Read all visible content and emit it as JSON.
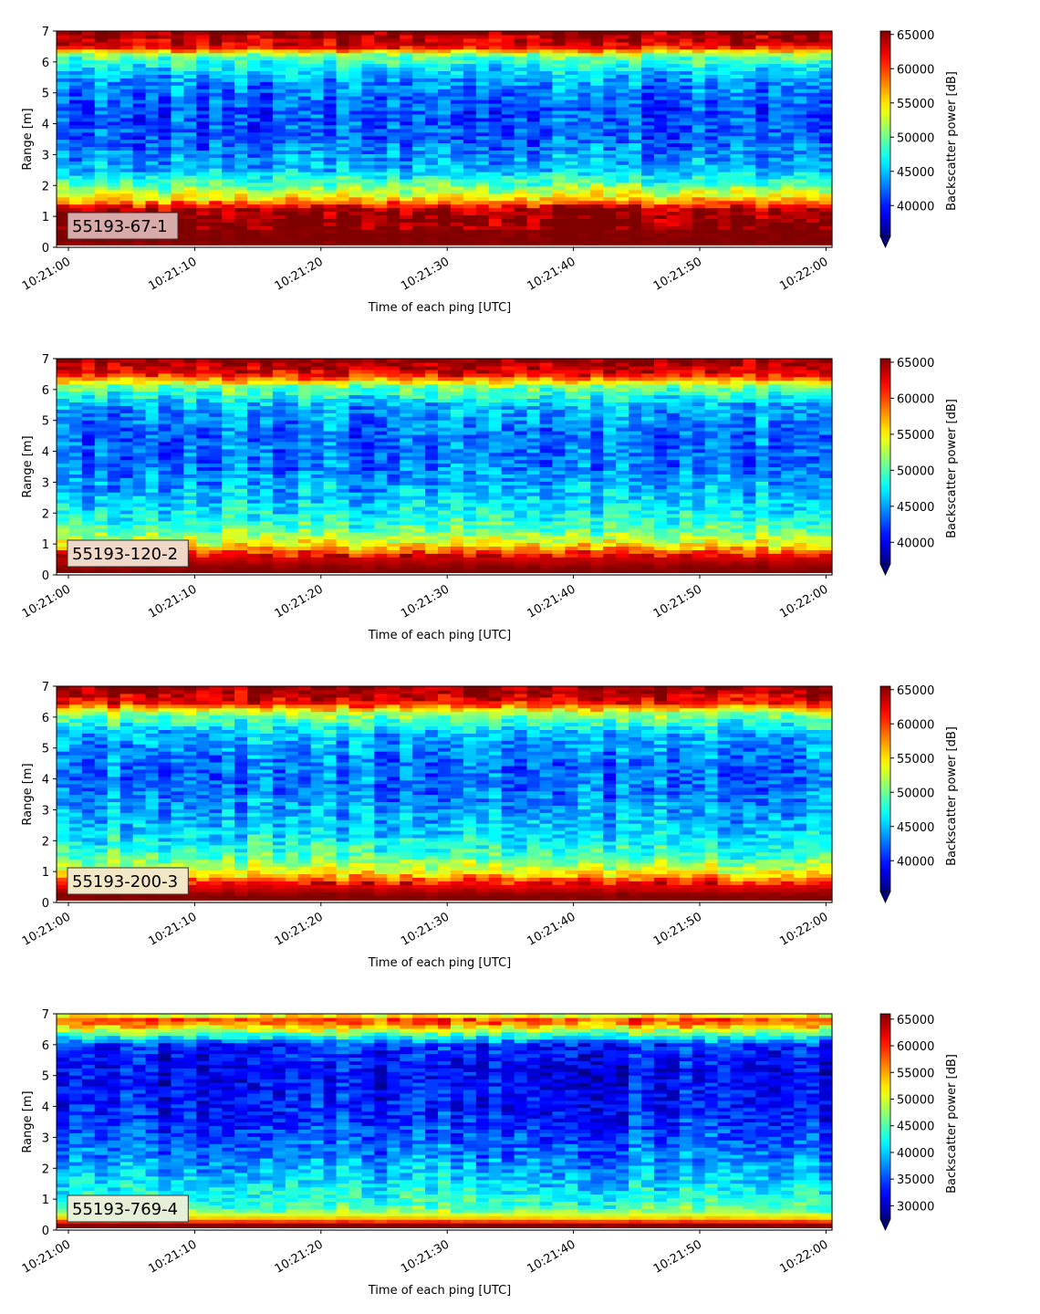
{
  "chart_data": [
    {
      "type": "heatmap",
      "label": "55193-67-1",
      "xlabel": "Time of each ping [UTC]",
      "ylabel": "Range [m]",
      "colorbar_label": "Backscatter power [dB]",
      "xticks": [
        "10:21:00",
        "10:21:10",
        "10:21:20",
        "10:21:30",
        "10:21:40",
        "10:21:50",
        "10:22:00"
      ],
      "yticks": [
        0,
        1,
        2,
        3,
        4,
        5,
        6,
        7
      ],
      "ylim": [
        0,
        7
      ],
      "clim": [
        35500,
        65500
      ],
      "cbar_ticks": [
        40000,
        45000,
        50000,
        55000,
        60000,
        65000
      ],
      "label_box_color": "#d9aaaa",
      "profile": [
        {
          "range": 0.2,
          "value": 65500
        },
        {
          "range": 1.2,
          "value": 65000
        },
        {
          "range": 1.6,
          "value": 55000
        },
        {
          "range": 2.0,
          "value": 50000
        },
        {
          "range": 2.5,
          "value": 45000
        },
        {
          "range": 3.5,
          "value": 42000
        },
        {
          "range": 4.5,
          "value": 41500
        },
        {
          "range": 5.5,
          "value": 44000
        },
        {
          "range": 6.2,
          "value": 50000
        },
        {
          "range": 6.5,
          "value": 62000
        },
        {
          "range": 7.0,
          "value": 65500
        }
      ]
    },
    {
      "type": "heatmap",
      "label": "55193-120-2",
      "xlabel": "Time of each ping [UTC]",
      "ylabel": "Range [m]",
      "colorbar_label": "Backscatter power [dB]",
      "xticks": [
        "10:21:00",
        "10:21:10",
        "10:21:20",
        "10:21:30",
        "10:21:40",
        "10:21:50",
        "10:22:00"
      ],
      "yticks": [
        0,
        1,
        2,
        3,
        4,
        5,
        6,
        7
      ],
      "ylim": [
        0,
        7
      ],
      "clim": [
        37000,
        65500
      ],
      "cbar_ticks": [
        40000,
        45000,
        50000,
        55000,
        60000,
        65000
      ],
      "label_box_color": "#f0d8c8",
      "profile": [
        {
          "range": 0.2,
          "value": 65500
        },
        {
          "range": 0.6,
          "value": 63000
        },
        {
          "range": 1.0,
          "value": 55000
        },
        {
          "range": 1.5,
          "value": 50000
        },
        {
          "range": 2.2,
          "value": 47000
        },
        {
          "range": 3.5,
          "value": 44000
        },
        {
          "range": 4.5,
          "value": 43500
        },
        {
          "range": 5.5,
          "value": 45500
        },
        {
          "range": 6.1,
          "value": 51000
        },
        {
          "range": 6.5,
          "value": 62000
        },
        {
          "range": 7.0,
          "value": 65500
        }
      ]
    },
    {
      "type": "heatmap",
      "label": "55193-200-3",
      "xlabel": "Time of each ping [UTC]",
      "ylabel": "Range [m]",
      "colorbar_label": "Backscatter power [dB]",
      "xticks": [
        "10:21:00",
        "10:21:10",
        "10:21:20",
        "10:21:30",
        "10:21:40",
        "10:21:50",
        "10:22:00"
      ],
      "yticks": [
        0,
        1,
        2,
        3,
        4,
        5,
        6,
        7
      ],
      "ylim": [
        0,
        7
      ],
      "clim": [
        35500,
        65500
      ],
      "cbar_ticks": [
        40000,
        45000,
        50000,
        55000,
        60000,
        65000
      ],
      "label_box_color": "#f2e8c8",
      "profile": [
        {
          "range": 0.2,
          "value": 65500
        },
        {
          "range": 0.6,
          "value": 62000
        },
        {
          "range": 1.0,
          "value": 54000
        },
        {
          "range": 1.5,
          "value": 49000
        },
        {
          "range": 2.2,
          "value": 46000
        },
        {
          "range": 3.5,
          "value": 43000
        },
        {
          "range": 4.5,
          "value": 42500
        },
        {
          "range": 5.5,
          "value": 45000
        },
        {
          "range": 6.1,
          "value": 51000
        },
        {
          "range": 6.5,
          "value": 62000
        },
        {
          "range": 7.0,
          "value": 65500
        }
      ]
    },
    {
      "type": "heatmap",
      "label": "55193-769-4",
      "xlabel": "Time of each ping [UTC]",
      "ylabel": "Range [m]",
      "colorbar_label": "Backscatter power [dB]",
      "xticks": [
        "10:21:00",
        "10:21:10",
        "10:21:20",
        "10:21:30",
        "10:21:40",
        "10:21:50",
        "10:22:00"
      ],
      "yticks": [
        0,
        1,
        2,
        3,
        4,
        5,
        6,
        7
      ],
      "ylim": [
        0,
        7
      ],
      "clim": [
        27500,
        66000
      ],
      "cbar_ticks": [
        30000,
        35000,
        40000,
        45000,
        50000,
        55000,
        60000,
        65000
      ],
      "label_box_color": "#e6f0d8",
      "profile": [
        {
          "range": 0.2,
          "value": 66000
        },
        {
          "range": 0.35,
          "value": 55000
        },
        {
          "range": 0.7,
          "value": 45000
        },
        {
          "range": 1.5,
          "value": 41000
        },
        {
          "range": 2.5,
          "value": 37000
        },
        {
          "range": 3.5,
          "value": 34000
        },
        {
          "range": 5.0,
          "value": 32000
        },
        {
          "range": 6.0,
          "value": 34000
        },
        {
          "range": 6.5,
          "value": 50000
        },
        {
          "range": 6.8,
          "value": 60000
        },
        {
          "range": 7.0,
          "value": 48000
        }
      ]
    }
  ]
}
